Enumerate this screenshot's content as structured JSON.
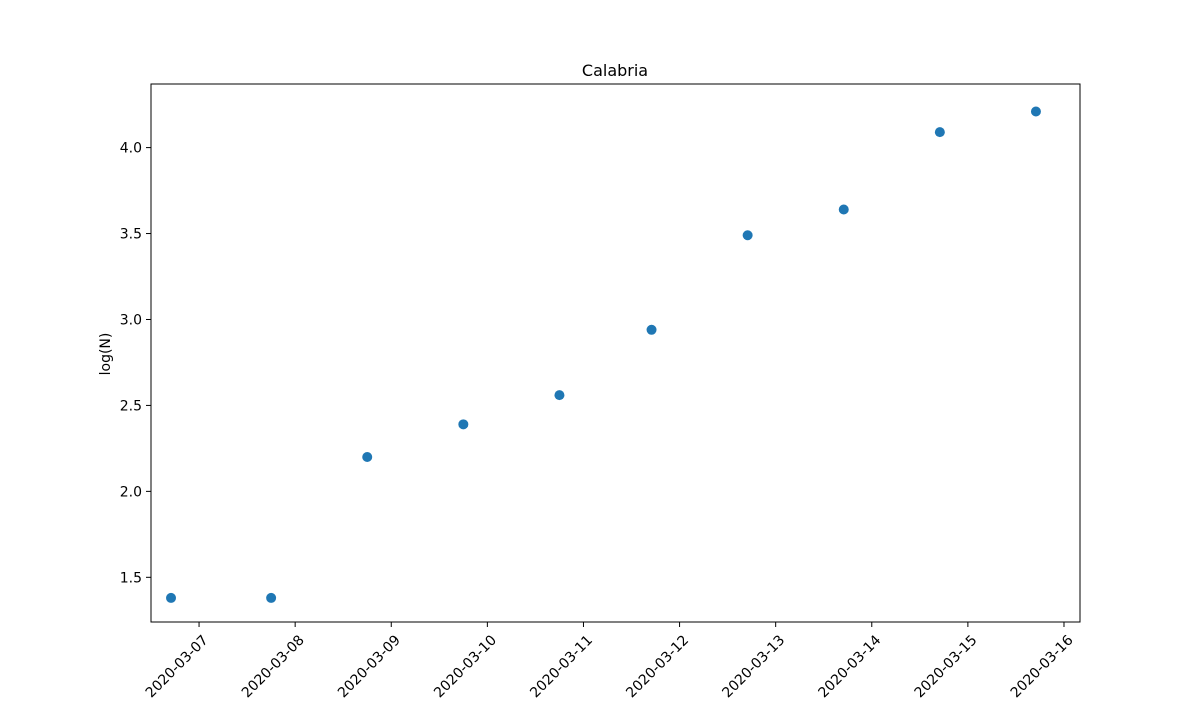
{
  "chart_data": {
    "type": "scatter",
    "title": "Calabria",
    "xlabel": "",
    "ylabel": "log(N)",
    "x": [
      "2020-03-06 17:00",
      "2020-03-07 18:00",
      "2020-03-08 18:00",
      "2020-03-09 18:00",
      "2020-03-10 18:00",
      "2020-03-11 17:00",
      "2020-03-12 17:00",
      "2020-03-13 17:00",
      "2020-03-14 17:00",
      "2020-03-15 17:00"
    ],
    "values": [
      1.38,
      1.38,
      2.2,
      2.39,
      2.56,
      2.94,
      3.49,
      3.64,
      4.09,
      4.21
    ],
    "xlim": [
      "2020-03-06 12:00",
      "2020-03-16 04:00"
    ],
    "ylim": [
      1.24,
      4.37
    ],
    "x_ticks": [
      "2020-03-07",
      "2020-03-08",
      "2020-03-09",
      "2020-03-10",
      "2020-03-11",
      "2020-03-12",
      "2020-03-13",
      "2020-03-14",
      "2020-03-15",
      "2020-03-16"
    ],
    "y_ticks": [
      "1.5",
      "2.0",
      "2.5",
      "3.0",
      "3.5",
      "4.0"
    ],
    "grid": false,
    "marker_color": "#1f77b4"
  }
}
